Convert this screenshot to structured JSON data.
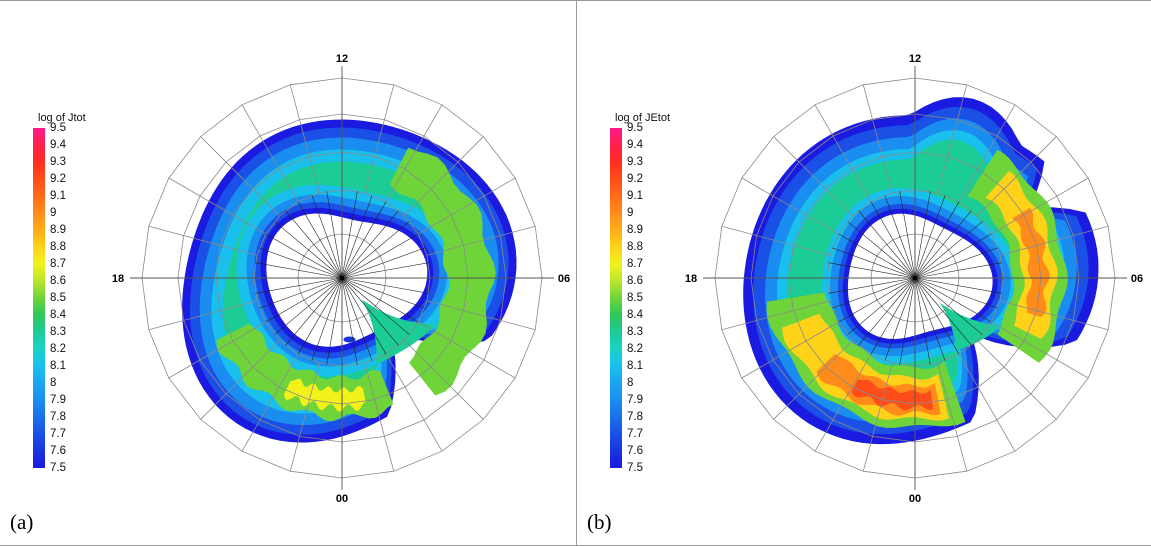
{
  "chart_data": [
    {
      "type": "polar-contour",
      "panel_label": "(a)",
      "legend_title": "log of Jtot",
      "colorbar_ticks": [
        "9.5",
        "9.4",
        "9.3",
        "9.2",
        "9.1",
        "9",
        "8.9",
        "8.8",
        "8.7",
        "8.6",
        "8.5",
        "8.4",
        "8.3",
        "8.2",
        "8.1",
        "8",
        "7.9",
        "7.8",
        "7.7",
        "7.6",
        "7.5"
      ],
      "colorbar_colors": [
        "#ff1a8c",
        "#ff1f4d",
        "#ff2f1f",
        "#ff4d1a",
        "#ff6a1a",
        "#ff8c1a",
        "#ffad1a",
        "#ffd21a",
        "#f2f21a",
        "#b8e62a",
        "#6fd43a",
        "#2ec85a",
        "#1ccc96",
        "#1ad2c8",
        "#1ac0ec",
        "#1aa6f0",
        "#1a8ef0",
        "#1a70ec",
        "#1a50e6",
        "#1a34e0",
        "#1a1ae0"
      ],
      "mlt_labels": {
        "top": "12",
        "right": "06",
        "bottom": "00",
        "left": "18"
      },
      "value_range": [
        7.5,
        9.5
      ],
      "peak_value": 8.7,
      "peak_region": "pre-midnight sector"
    },
    {
      "type": "polar-contour",
      "panel_label": "(b)",
      "legend_title": "log of JEtot",
      "colorbar_ticks": [
        "9.5",
        "9.4",
        "9.3",
        "9.2",
        "9.1",
        "9",
        "8.9",
        "8.8",
        "8.7",
        "8.6",
        "8.5",
        "8.4",
        "8.3",
        "8.2",
        "8.1",
        "8",
        "7.9",
        "7.8",
        "7.7",
        "7.6",
        "7.5"
      ],
      "colorbar_colors": [
        "#ff1a8c",
        "#ff1f4d",
        "#ff2f1f",
        "#ff4d1a",
        "#ff6a1a",
        "#ff8c1a",
        "#ffad1a",
        "#ffd21a",
        "#f2f21a",
        "#b8e62a",
        "#6fd43a",
        "#2ec85a",
        "#1ccc96",
        "#1ad2c8",
        "#1ac0ec",
        "#1aa6f0",
        "#1a8ef0",
        "#1a70ec",
        "#1a50e6",
        "#1a34e0",
        "#1a1ae0"
      ],
      "mlt_labels": {
        "top": "12",
        "right": "06",
        "bottom": "00",
        "left": "18"
      },
      "value_range": [
        7.5,
        9.5
      ],
      "peak_value": 9.2,
      "peak_region": "pre-midnight and dawn sectors"
    }
  ]
}
